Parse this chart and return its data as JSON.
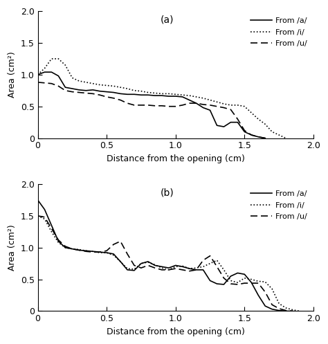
{
  "title_a": "(a)",
  "title_b": "(b)",
  "xlabel": "Distance from the opening (cm)",
  "ylabel": "Area (cm²)",
  "xlim": [
    0,
    2.0
  ],
  "ylim": [
    0,
    2.0
  ],
  "xticks": [
    0,
    0.5,
    1.0,
    1.5,
    2.0
  ],
  "yticks": [
    0,
    0.5,
    1.0,
    1.5,
    2.0
  ],
  "legend_labels": [
    "From /a/",
    "From /i/",
    "From /u/"
  ],
  "panel_a": {
    "a_x": [
      0.0,
      0.05,
      0.1,
      0.15,
      0.2,
      0.25,
      0.3,
      0.35,
      0.4,
      0.45,
      0.5,
      0.55,
      0.6,
      0.65,
      0.7,
      0.75,
      0.8,
      0.85,
      0.9,
      0.95,
      1.0,
      1.05,
      1.1,
      1.15,
      1.2,
      1.25,
      1.3,
      1.35,
      1.4,
      1.45,
      1.5,
      1.55,
      1.6,
      1.65
    ],
    "a_y": [
      1.0,
      1.04,
      1.04,
      0.98,
      0.8,
      0.78,
      0.76,
      0.75,
      0.76,
      0.74,
      0.73,
      0.72,
      0.7,
      0.69,
      0.69,
      0.68,
      0.68,
      0.67,
      0.67,
      0.66,
      0.66,
      0.65,
      0.6,
      0.55,
      0.48,
      0.44,
      0.2,
      0.18,
      0.25,
      0.25,
      0.1,
      0.05,
      0.02,
      0.0
    ],
    "i_x": [
      0.0,
      0.05,
      0.1,
      0.15,
      0.2,
      0.25,
      0.3,
      0.35,
      0.4,
      0.45,
      0.5,
      0.55,
      0.6,
      0.65,
      0.7,
      0.75,
      0.8,
      0.85,
      0.9,
      0.95,
      1.0,
      1.05,
      1.1,
      1.15,
      1.2,
      1.25,
      1.3,
      1.35,
      1.4,
      1.45,
      1.5,
      1.55,
      1.6,
      1.65,
      1.7,
      1.75,
      1.8
    ],
    "i_y": [
      1.0,
      1.1,
      1.25,
      1.25,
      1.15,
      0.95,
      0.9,
      0.88,
      0.86,
      0.84,
      0.83,
      0.82,
      0.8,
      0.78,
      0.75,
      0.74,
      0.72,
      0.71,
      0.7,
      0.7,
      0.69,
      0.68,
      0.67,
      0.65,
      0.63,
      0.6,
      0.57,
      0.54,
      0.52,
      0.52,
      0.5,
      0.4,
      0.3,
      0.22,
      0.1,
      0.05,
      0.0
    ],
    "u_x": [
      0.0,
      0.05,
      0.1,
      0.15,
      0.2,
      0.25,
      0.3,
      0.35,
      0.4,
      0.45,
      0.5,
      0.55,
      0.6,
      0.65,
      0.7,
      0.75,
      0.8,
      0.85,
      0.9,
      0.95,
      1.0,
      1.05,
      1.1,
      1.15,
      1.2,
      1.25,
      1.3,
      1.35,
      1.4,
      1.45,
      1.5,
      1.55,
      1.6,
      1.65
    ],
    "u_y": [
      0.88,
      0.87,
      0.86,
      0.82,
      0.75,
      0.73,
      0.72,
      0.71,
      0.7,
      0.68,
      0.65,
      0.63,
      0.6,
      0.55,
      0.52,
      0.52,
      0.52,
      0.51,
      0.51,
      0.5,
      0.5,
      0.52,
      0.55,
      0.55,
      0.53,
      0.52,
      0.5,
      0.48,
      0.45,
      0.3,
      0.12,
      0.05,
      0.02,
      0.0
    ]
  },
  "panel_b": {
    "a_x": [
      0.0,
      0.05,
      0.1,
      0.15,
      0.2,
      0.25,
      0.3,
      0.35,
      0.4,
      0.45,
      0.5,
      0.55,
      0.6,
      0.65,
      0.7,
      0.75,
      0.8,
      0.85,
      0.9,
      0.95,
      1.0,
      1.05,
      1.1,
      1.15,
      1.2,
      1.25,
      1.3,
      1.35,
      1.4,
      1.45,
      1.5,
      1.55,
      1.6,
      1.65,
      1.7,
      1.75,
      1.8,
      1.85
    ],
    "a_y": [
      1.75,
      1.6,
      1.35,
      1.1,
      1.0,
      0.98,
      0.96,
      0.95,
      0.94,
      0.93,
      0.92,
      0.9,
      0.78,
      0.65,
      0.64,
      0.75,
      0.78,
      0.72,
      0.7,
      0.68,
      0.72,
      0.7,
      0.67,
      0.65,
      0.65,
      0.48,
      0.43,
      0.42,
      0.55,
      0.6,
      0.58,
      0.45,
      0.25,
      0.08,
      0.03,
      0.01,
      0.0,
      0.0
    ],
    "i_x": [
      0.0,
      0.05,
      0.1,
      0.15,
      0.2,
      0.25,
      0.3,
      0.35,
      0.4,
      0.45,
      0.5,
      0.55,
      0.6,
      0.65,
      0.7,
      0.75,
      0.8,
      0.85,
      0.9,
      0.95,
      1.0,
      1.05,
      1.1,
      1.15,
      1.2,
      1.25,
      1.3,
      1.35,
      1.4,
      1.45,
      1.5,
      1.55,
      1.6,
      1.65,
      1.7,
      1.75,
      1.8,
      1.85,
      1.9
    ],
    "i_y": [
      1.5,
      1.45,
      1.25,
      1.08,
      1.0,
      0.98,
      0.97,
      0.95,
      0.94,
      0.92,
      0.92,
      0.88,
      0.78,
      0.67,
      0.66,
      0.75,
      0.77,
      0.73,
      0.68,
      0.65,
      0.7,
      0.71,
      0.67,
      0.68,
      0.7,
      0.75,
      0.8,
      0.65,
      0.48,
      0.45,
      0.52,
      0.5,
      0.47,
      0.46,
      0.35,
      0.12,
      0.05,
      0.02,
      0.0
    ],
    "u_x": [
      0.0,
      0.05,
      0.1,
      0.15,
      0.2,
      0.25,
      0.3,
      0.35,
      0.4,
      0.45,
      0.5,
      0.55,
      0.6,
      0.65,
      0.7,
      0.75,
      0.8,
      0.85,
      0.9,
      0.95,
      1.0,
      1.05,
      1.1,
      1.15,
      1.2,
      1.25,
      1.3,
      1.35,
      1.4,
      1.45,
      1.5,
      1.55,
      1.6,
      1.65,
      1.7,
      1.75,
      1.8,
      1.85
    ],
    "u_y": [
      1.5,
      1.48,
      1.3,
      1.12,
      1.02,
      0.98,
      0.96,
      0.94,
      0.93,
      0.93,
      0.95,
      1.05,
      1.1,
      0.9,
      0.72,
      0.68,
      0.72,
      0.68,
      0.65,
      0.65,
      0.67,
      0.65,
      0.63,
      0.65,
      0.8,
      0.87,
      0.7,
      0.52,
      0.43,
      0.42,
      0.44,
      0.44,
      0.44,
      0.3,
      0.1,
      0.04,
      0.01,
      0.0
    ]
  }
}
